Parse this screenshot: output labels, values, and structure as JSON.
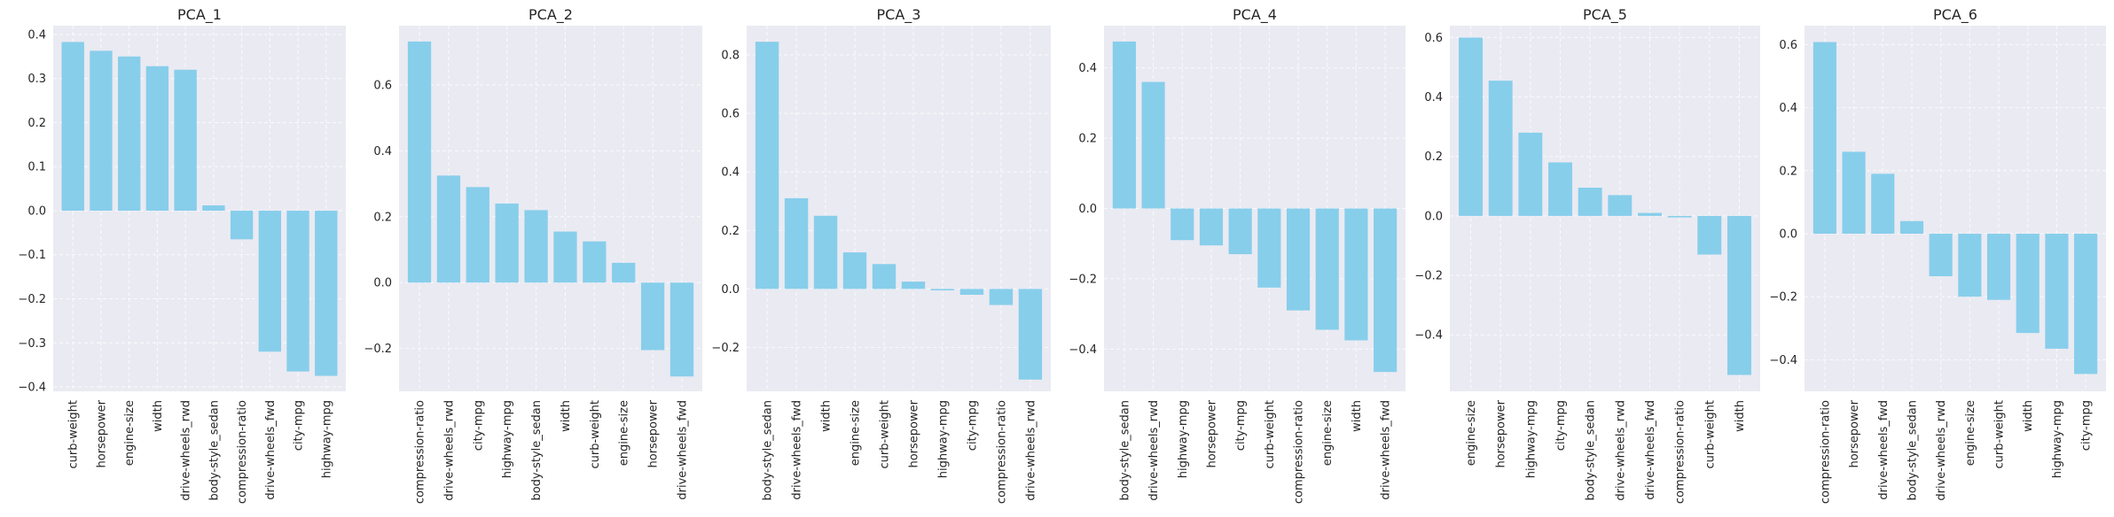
{
  "figure": {
    "background": "#ffffff",
    "plot_background": "#eaeaf2",
    "bar_color": "#87ceeb",
    "grid": true
  },
  "chart_data": [
    {
      "type": "bar",
      "title": "PCA_1",
      "categories": [
        "curb-weight",
        "horsepower",
        "engine-size",
        "width",
        "drive-wheels_rwd",
        "body-style_sedan",
        "compression-ratio",
        "drive-wheels_fwd",
        "city-mpg",
        "highway-mpg"
      ],
      "values": [
        0.383,
        0.363,
        0.35,
        0.328,
        0.32,
        0.012,
        -0.065,
        -0.32,
        -0.365,
        -0.375
      ],
      "ylim": [
        -0.41,
        0.42
      ],
      "yticks": [
        -0.4,
        -0.3,
        -0.2,
        -0.1,
        0.0,
        0.1,
        0.2,
        0.3,
        0.4
      ],
      "ytick_labels": [
        "−0.4",
        "−0.3",
        "−0.2",
        "−0.1",
        "0.0",
        "0.1",
        "0.2",
        "0.3",
        "0.4"
      ]
    },
    {
      "type": "bar",
      "title": "PCA_2",
      "categories": [
        "compression-ratio",
        "drive-wheels_rwd",
        "city-mpg",
        "highway-mpg",
        "body-style_sedan",
        "width",
        "curb-weight",
        "engine-size",
        "horsepower",
        "drive-wheels_fwd"
      ],
      "values": [
        0.732,
        0.325,
        0.29,
        0.24,
        0.22,
        0.155,
        0.125,
        0.06,
        -0.205,
        -0.285
      ],
      "ylim": [
        -0.33,
        0.78
      ],
      "yticks": [
        -0.2,
        0.0,
        0.2,
        0.4,
        0.6
      ],
      "ytick_labels": [
        "−0.2",
        "0.0",
        "0.2",
        "0.4",
        "0.6"
      ]
    },
    {
      "type": "bar",
      "title": "PCA_3",
      "categories": [
        "body-style_sedan",
        "drive-wheels_fwd",
        "width",
        "engine-size",
        "curb-weight",
        "horsepower",
        "highway-mpg",
        "city-mpg",
        "compression-ratio",
        "drive-wheels_rwd"
      ],
      "values": [
        0.845,
        0.31,
        0.25,
        0.125,
        0.085,
        0.025,
        -0.005,
        -0.02,
        -0.055,
        -0.31
      ],
      "ylim": [
        -0.35,
        0.9
      ],
      "yticks": [
        -0.2,
        0.0,
        0.2,
        0.4,
        0.6,
        0.8
      ],
      "ytick_labels": [
        "−0.2",
        "0.0",
        "0.2",
        "0.4",
        "0.6",
        "0.8"
      ]
    },
    {
      "type": "bar",
      "title": "PCA_4",
      "categories": [
        "body-style_sedan",
        "drive-wheels_rwd",
        "highway-mpg",
        "horsepower",
        "city-mpg",
        "curb-weight",
        "compression-ratio",
        "engine-size",
        "width",
        "drive-wheels_fwd"
      ],
      "values": [
        0.475,
        0.36,
        -0.09,
        -0.105,
        -0.13,
        -0.225,
        -0.29,
        -0.345,
        -0.375,
        -0.465
      ],
      "ylim": [
        -0.52,
        0.52
      ],
      "yticks": [
        -0.4,
        -0.2,
        0.0,
        0.2,
        0.4
      ],
      "ytick_labels": [
        "−0.4",
        "−0.2",
        "0.0",
        "0.2",
        "0.4"
      ]
    },
    {
      "type": "bar",
      "title": "PCA_5",
      "categories": [
        "engine-size",
        "horsepower",
        "highway-mpg",
        "city-mpg",
        "body-style_sedan",
        "drive-wheels_rwd",
        "drive-wheels_fwd",
        "compression-ratio",
        "curb-weight",
        "width"
      ],
      "values": [
        0.6,
        0.455,
        0.28,
        0.18,
        0.095,
        0.07,
        0.01,
        -0.005,
        -0.13,
        -0.535
      ],
      "ylim": [
        -0.59,
        0.64
      ],
      "yticks": [
        -0.4,
        -0.2,
        0.0,
        0.2,
        0.4,
        0.6
      ],
      "ytick_labels": [
        "−0.4",
        "−0.2",
        "0.0",
        "0.2",
        "0.4",
        "0.6"
      ]
    },
    {
      "type": "bar",
      "title": "PCA_6",
      "categories": [
        "compression-ratio",
        "horsepower",
        "drive-wheels_fwd",
        "body-style_sedan",
        "drive-wheels_rwd",
        "engine-size",
        "curb-weight",
        "width",
        "highway-mpg",
        "city-mpg"
      ],
      "values": [
        0.608,
        0.26,
        0.19,
        0.04,
        -0.135,
        -0.2,
        -0.21,
        -0.315,
        -0.365,
        -0.445
      ],
      "ylim": [
        -0.5,
        0.66
      ],
      "yticks": [
        -0.4,
        -0.2,
        0.0,
        0.2,
        0.4,
        0.6
      ],
      "ytick_labels": [
        "−0.4",
        "−0.2",
        "0.0",
        "0.2",
        "0.4",
        "0.6"
      ]
    }
  ]
}
